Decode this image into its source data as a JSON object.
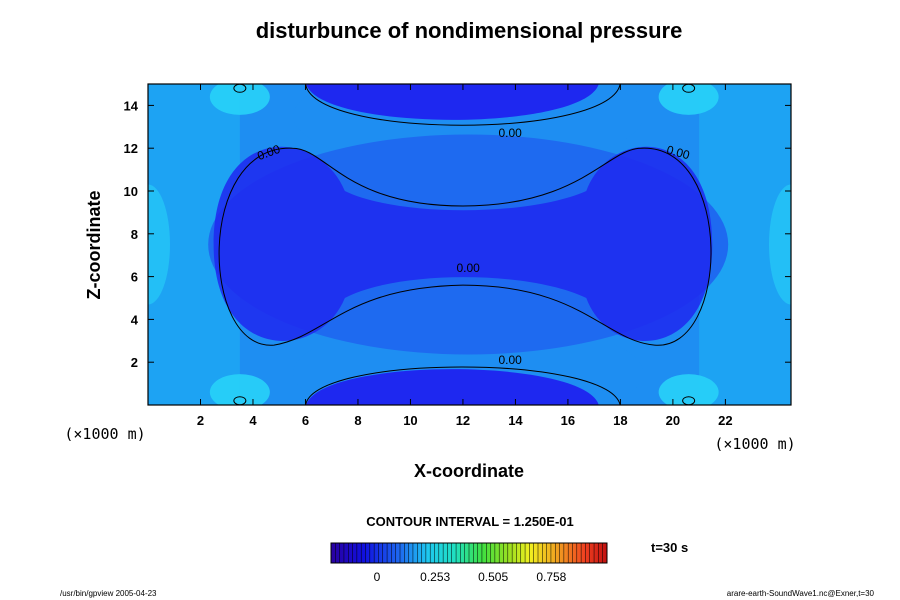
{
  "chart_data": {
    "type": "heatmap",
    "title": "disturbunce of nondimensional pressure",
    "xlabel": "X-coordinate",
    "ylabel": "Z-coordinate",
    "x_unit_label": "(×1000 m)",
    "z_unit_label": "(×1000 m)",
    "xlim": [
      0,
      24.5
    ],
    "zlim": [
      0,
      15
    ],
    "x_ticks": [
      "2",
      "4",
      "6",
      "8",
      "10",
      "12",
      "14",
      "16",
      "18",
      "20",
      "22"
    ],
    "z_ticks": [
      "2",
      "4",
      "6",
      "8",
      "10",
      "12",
      "14"
    ],
    "contour_interval_text": "CONTOUR INTERVAL = 1.250E-01",
    "contour_labels": [
      "0.00",
      "0.00",
      "0.00",
      "0.00",
      "0.00"
    ],
    "time_label": "t=30 s",
    "colorbar_ticks": [
      "0",
      "0.253",
      "0.505",
      "0.758"
    ],
    "colorbar_range": [
      -0.2,
      1.0
    ],
    "footer_left": "/usr/bin/gpview 2005-04-23",
    "footer_right": "arare-earth-SoundWave1.nc@Exner,t=30",
    "colors": {
      "deep": "#1e28f0",
      "mid": "#1e6af0",
      "light": "#1e8ef2",
      "cyan": "#1eb4f4",
      "bright": "#28d2f8",
      "contour": "#000000"
    }
  }
}
